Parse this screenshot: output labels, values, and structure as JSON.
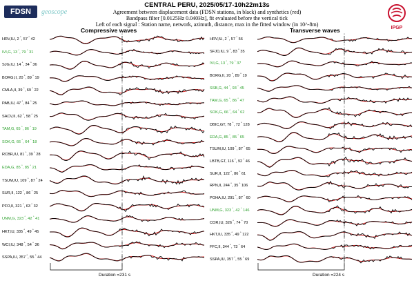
{
  "header": {
    "title": "CENTRAL PERU, 2025/05/17-10h22m13s",
    "line2": "Agreement between displacement data (FDSN stations, in black) and synthetics (red)",
    "line3": "Bandpass filter [0.0125Hz 0.040Hz], fit evaluated before the vertical tick",
    "line4": "Left of each signal : Station name, network, azimuth, distance, max in the fitted window (in 10^-8m)"
  },
  "logos": {
    "fdsn": "FDSN",
    "geoscope": "geoscope",
    "ipgp": "IPGP"
  },
  "colors": {
    "data": "#000000",
    "synthetic": "#d62728",
    "green_label": "#2aa02a"
  },
  "compressive": {
    "title": "Compressive waves",
    "duration": "Duration =231 s",
    "stations": [
      {
        "label": "HRV,IU, 2",
        "dist": "57",
        "max": "42",
        "green": false
      },
      {
        "label": "IVI,G, 13",
        "dist": "79",
        "max": "31",
        "green": true
      },
      {
        "label": "SJG,IU, 14",
        "dist": "34",
        "max": "36",
        "green": false
      },
      {
        "label": "BORG,II, 20",
        "dist": "89",
        "max": "19",
        "green": false
      },
      {
        "label": "CMLA,II, 39",
        "dist": "69",
        "max": "22",
        "green": false
      },
      {
        "label": "PAB,IU, 47",
        "dist": "84",
        "max": "25",
        "green": false
      },
      {
        "label": "SACV,II, 62",
        "dist": "58",
        "max": "25",
        "green": false
      },
      {
        "label": "TAM,G, 65",
        "dist": "86",
        "max": "19",
        "green": true
      },
      {
        "label": "SOK,G, 66",
        "dist": "64",
        "max": "18",
        "green": true
      },
      {
        "label": "RCBR,IU, 81",
        "dist": "39",
        "max": "28",
        "green": false
      },
      {
        "label": "EDA,G, 85",
        "dist": "85",
        "max": "21",
        "green": true
      },
      {
        "label": "TSUM,IU, 109",
        "dist": "87",
        "max": "24",
        "green": false
      },
      {
        "label": "SUR,II, 122",
        "dist": "86",
        "max": "25",
        "green": false
      },
      {
        "label": "PFO,II, 321",
        "dist": "63",
        "max": "32",
        "green": false
      },
      {
        "label": "UNM,G, 323",
        "dist": "42",
        "max": "41",
        "green": true
      },
      {
        "label": "HKT,IU, 335",
        "dist": "49",
        "max": "45",
        "green": false
      },
      {
        "label": "WCI,IU, 348",
        "dist": "54",
        "max": "36",
        "green": false
      },
      {
        "label": "SSPA,IU, 357",
        "dist": "55",
        "max": "44",
        "green": false
      }
    ]
  },
  "transverse": {
    "title": "Transverse waves",
    "duration": "Duration =224 s",
    "stations": [
      {
        "label": "HRV,IU, 2",
        "dist": "57",
        "max": "56",
        "green": false
      },
      {
        "label": "SFJD,IU, 9",
        "dist": "83",
        "max": "35",
        "green": false
      },
      {
        "label": "IVI,G, 13",
        "dist": "79",
        "max": "37",
        "green": true
      },
      {
        "label": "BORG,II, 20",
        "dist": "89",
        "max": "19",
        "green": false
      },
      {
        "label": "SSB,G, 44",
        "dist": "93",
        "max": "45",
        "green": true
      },
      {
        "label": "TAM,G, 65",
        "dist": "86",
        "max": "47",
        "green": true
      },
      {
        "label": "SOK,G, 66",
        "dist": "64",
        "max": "62",
        "green": true
      },
      {
        "label": "DBIC,GT, 78",
        "dist": "72",
        "max": "128",
        "green": false
      },
      {
        "label": "EDA,G, 85",
        "dist": "85",
        "max": "65",
        "green": true
      },
      {
        "label": "TSUM,IU, 109",
        "dist": "87",
        "max": "65",
        "green": false
      },
      {
        "label": "LBTB,GT, 116",
        "dist": "92",
        "max": "46",
        "green": false
      },
      {
        "label": "SUR,II, 122",
        "dist": "86",
        "max": "61",
        "green": false
      },
      {
        "label": "RPN,II, 244",
        "dist": "35",
        "max": "106",
        "green": false
      },
      {
        "label": "POHA,IU, 291",
        "dist": "87",
        "max": "60",
        "green": false
      },
      {
        "label": "UNM,G, 323",
        "dist": "42",
        "max": "146",
        "green": true
      },
      {
        "label": "COR,IU, 326",
        "dist": "74",
        "max": "70",
        "green": false
      },
      {
        "label": "HKT,IU, 335",
        "dist": "49",
        "max": "122",
        "green": false
      },
      {
        "label": "FFC,II, 344",
        "dist": "73",
        "max": "64",
        "green": false
      },
      {
        "label": "SSPA,IU, 357",
        "dist": "55",
        "max": "69",
        "green": false
      }
    ]
  }
}
